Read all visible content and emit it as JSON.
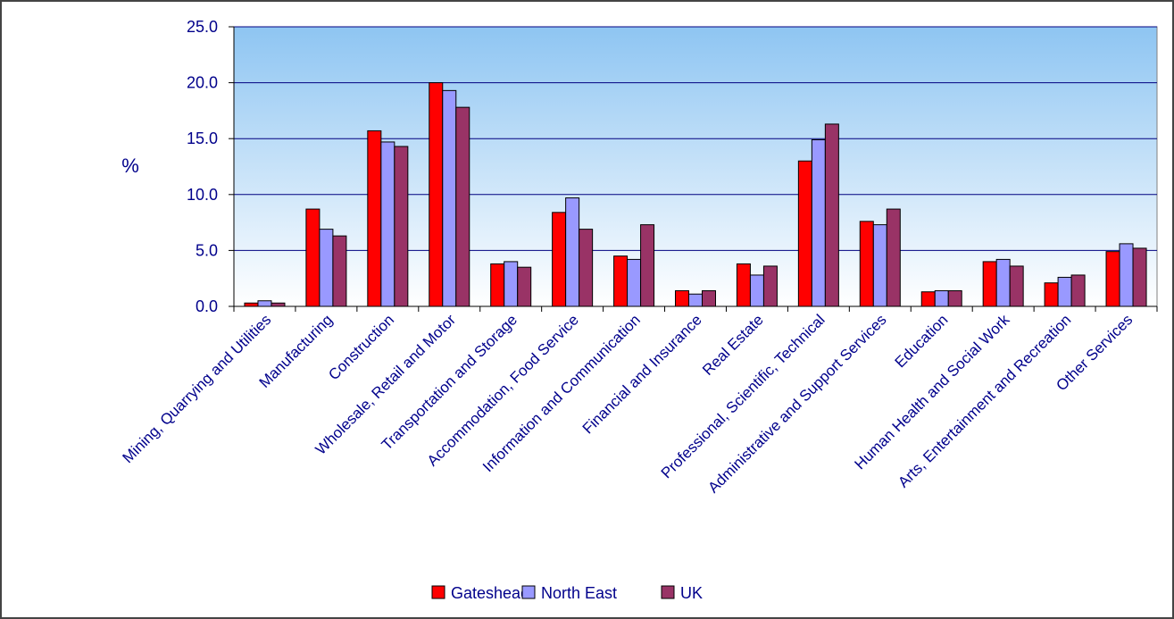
{
  "chart_data": {
    "type": "bar",
    "title": "",
    "xlabel": "",
    "ylabel": "%",
    "ylim": [
      0,
      25
    ],
    "yticks": [
      "0.0",
      "5.0",
      "10.0",
      "15.0",
      "20.0",
      "25.0"
    ],
    "grid": true,
    "legend_position": "bottom",
    "categories": [
      "Mining, Quarrying and Utilities",
      "Manufacturing",
      "Construction",
      "Wholesale, Retail and Motor",
      "Transportation and Storage",
      "Accommodation, Food Service",
      "Information and Communication",
      "Financial and Insurance",
      "Real Estate",
      "Professional, Scientific, Technical",
      "Administrative and Support Services",
      "Education",
      "Human Health and Social Work",
      "Arts, Entertainment and Recreation",
      "Other Services"
    ],
    "series": [
      {
        "name": "Gateshead",
        "color": "#FF0000",
        "values": [
          0.3,
          8.7,
          15.7,
          20.0,
          3.8,
          8.4,
          4.5,
          1.4,
          3.8,
          13.0,
          7.6,
          1.3,
          4.0,
          2.1,
          4.9
        ]
      },
      {
        "name": "North East",
        "color": "#9999FF",
        "values": [
          0.5,
          6.9,
          14.7,
          19.3,
          4.0,
          9.7,
          4.2,
          1.1,
          2.8,
          14.9,
          7.3,
          1.4,
          4.2,
          2.6,
          5.6
        ]
      },
      {
        "name": "UK",
        "color": "#993366",
        "values": [
          0.3,
          6.3,
          14.3,
          17.8,
          3.5,
          6.9,
          7.3,
          1.4,
          3.6,
          16.3,
          8.7,
          1.4,
          3.6,
          2.8,
          5.2
        ]
      }
    ]
  }
}
